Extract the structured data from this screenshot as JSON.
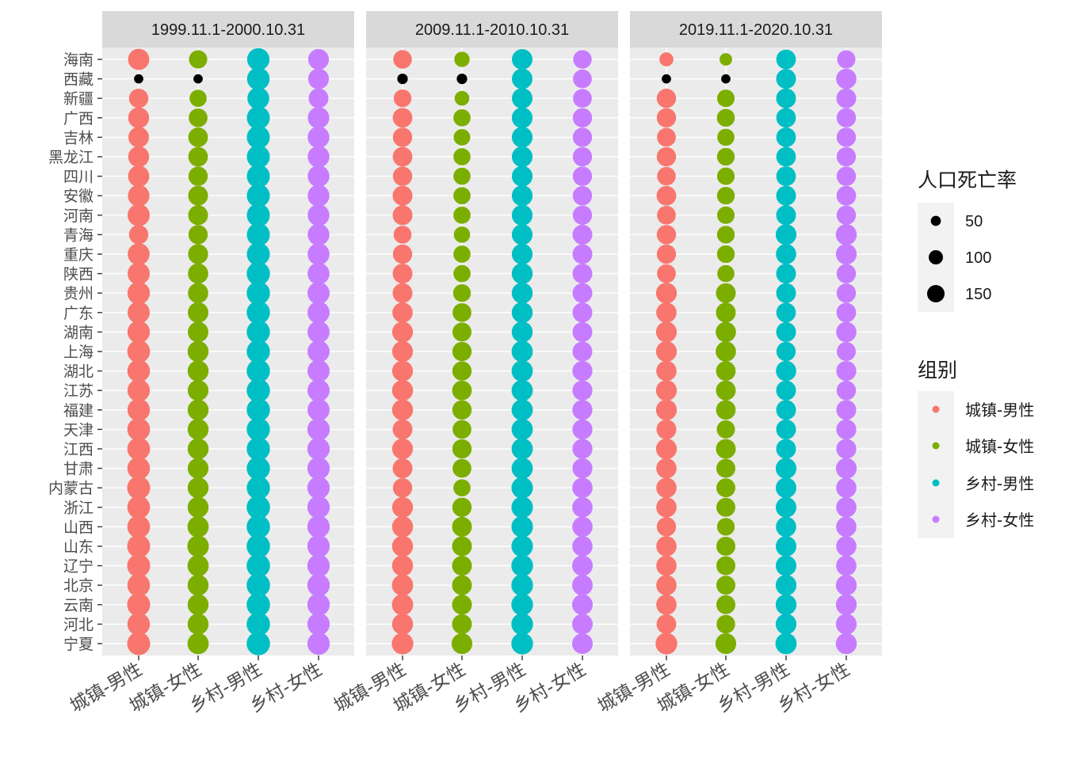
{
  "chart_data": {
    "type": "scatter",
    "subtype": "faceted-dot-matrix",
    "facets": [
      "1999.11.1-2000.10.31",
      "2009.11.1-2010.10.31",
      "2019.11.1-2020.10.31"
    ],
    "categories_x": [
      "城镇-男性",
      "城镇-女性",
      "乡村-男性",
      "乡村-女性"
    ],
    "categories_y": [
      "海南",
      "西藏",
      "新疆",
      "广西",
      "吉林",
      "黑龙江",
      "四川",
      "安徽",
      "河南",
      "青海",
      "重庆",
      "陕西",
      "贵州",
      "广东",
      "湖南",
      "上海",
      "湖北",
      "江苏",
      "福建",
      "天津",
      "江西",
      "甘肃",
      "内蒙古",
      "浙江",
      "山西",
      "山东",
      "辽宁",
      "北京",
      "云南",
      "河北",
      "宁夏"
    ],
    "size_legend": {
      "title": "人口死亡率",
      "breaks": [
        50,
        100,
        150
      ]
    },
    "color_legend": {
      "title": "组别",
      "labels": [
        "城镇-男性",
        "城镇-女性",
        "乡村-男性",
        "乡村-女性"
      ],
      "colors": [
        "#F8766D",
        "#7CAE00",
        "#00BFC4",
        "#C77CFF"
      ]
    },
    "missing_color": "#000000",
    "panels": [
      {
        "facet": "1999.11.1-2000.10.31",
        "series": [
          {
            "name": "城镇-男性",
            "values": [
              115,
              22,
              95,
              112,
              108,
              112,
              115,
              118,
              125,
              95,
              122,
              125,
              128,
              125,
              128,
              132,
              130,
              128,
              128,
              132,
              132,
              130,
              135,
              132,
              132,
              135,
              135,
              130,
              135,
              130,
              135
            ]
          },
          {
            "name": "城镇-女性",
            "values": [
              85,
              22,
              75,
              90,
              98,
              98,
              95,
              100,
              100,
              95,
              102,
              105,
              105,
              108,
              108,
              112,
              112,
              110,
              112,
              112,
              112,
              110,
              112,
              112,
              115,
              118,
              115,
              112,
              112,
              112,
              115
            ]
          },
          {
            "name": "乡村-男性",
            "values": [
              128,
              130,
              122,
              135,
              135,
              135,
              135,
              135,
              135,
              135,
              135,
              138,
              138,
              138,
              138,
              138,
              138,
              138,
              138,
              138,
              138,
              138,
              138,
              140,
              140,
              140,
              140,
              140,
              140,
              140,
              140
            ]
          },
          {
            "name": "乡村-女性",
            "values": [
              110,
              110,
              100,
              118,
              120,
              120,
              120,
              120,
              120,
              120,
              122,
              122,
              125,
              125,
              125,
              125,
              125,
              125,
              125,
              128,
              128,
              128,
              128,
              128,
              128,
              128,
              128,
              128,
              128,
              128,
              128
            ]
          }
        ]
      },
      {
        "facet": "2009.11.1-2010.10.31",
        "series": [
          {
            "name": "城镇-男性",
            "values": [
              88,
              28,
              80,
              98,
              95,
              98,
              95,
              100,
              100,
              82,
              95,
              100,
              100,
              105,
              110,
              110,
              110,
              112,
              112,
              100,
              110,
              100,
              95,
              110,
              112,
              112,
              112,
              115,
              115,
              112,
              118
            ]
          },
          {
            "name": "城镇-女性",
            "values": [
              60,
              28,
              55,
              75,
              70,
              75,
              75,
              75,
              75,
              68,
              75,
              75,
              80,
              90,
              92,
              95,
              95,
              98,
              95,
              90,
              95,
              90,
              75,
              95,
              100,
              100,
              100,
              100,
              100,
              100,
              110
            ]
          },
          {
            "name": "乡村-男性",
            "values": [
              108,
              108,
              108,
              110,
              110,
              110,
              110,
              110,
              110,
              110,
              110,
              112,
              112,
              112,
              112,
              115,
              115,
              115,
              115,
              115,
              115,
              115,
              118,
              118,
              118,
              118,
              120,
              120,
              120,
              120,
              120
            ]
          },
          {
            "name": "乡村-女性",
            "values": [
              88,
              90,
              90,
              95,
              95,
              95,
              95,
              95,
              95,
              100,
              100,
              100,
              100,
              100,
              100,
              100,
              102,
              102,
              102,
              102,
              102,
              102,
              105,
              105,
              105,
              105,
              108,
              108,
              108,
              108,
              108
            ]
          }
        ]
      },
      {
        "facet": "2019.11.1-2020.10.31",
        "series": [
          {
            "name": "城镇-男性",
            "values": [
              50,
              22,
              95,
              95,
              90,
              95,
              88,
              98,
              90,
              95,
              95,
              90,
              110,
              105,
              110,
              110,
              105,
              110,
              110,
              100,
              110,
              105,
              105,
              105,
              95,
              105,
              105,
              105,
              105,
              98,
              120
            ]
          },
          {
            "name": "城镇-女性",
            "values": [
              40,
              22,
              78,
              82,
              75,
              80,
              78,
              80,
              78,
              80,
              80,
              75,
              100,
              100,
              105,
              105,
              98,
              100,
              98,
              85,
              100,
              92,
              92,
              92,
              80,
              92,
              92,
              92,
              92,
              88,
              110
            ]
          },
          {
            "name": "乡村-男性",
            "values": [
              98,
              100,
              100,
              98,
              98,
              98,
              98,
              100,
              100,
              110,
              105,
              100,
              100,
              98,
              100,
              95,
              105,
              100,
              100,
              100,
              100,
              110,
              108,
              108,
              105,
              108,
              108,
              110,
              110,
              110,
              115
            ]
          },
          {
            "name": "乡村-女性",
            "values": [
              85,
              105,
              100,
              95,
              95,
              95,
              95,
              98,
              95,
              112,
              110,
              95,
              95,
              98,
              105,
              92,
              102,
              95,
              100,
              102,
              102,
              110,
              105,
              105,
              105,
              105,
              105,
              110,
              110,
              110,
              112
            ]
          }
        ]
      }
    ],
    "missing": [
      {
        "facet": "1999.11.1-2000.10.31",
        "province": "西藏",
        "group": "城镇-男性"
      },
      {
        "facet": "1999.11.1-2000.10.31",
        "province": "西藏",
        "group": "城镇-女性"
      },
      {
        "facet": "2009.11.1-2010.10.31",
        "province": "西藏",
        "group": "城镇-男性"
      },
      {
        "facet": "2009.11.1-2010.10.31",
        "province": "西藏",
        "group": "城镇-女性"
      },
      {
        "facet": "2019.11.1-2020.10.31",
        "province": "西藏",
        "group": "城镇-男性"
      },
      {
        "facet": "2019.11.1-2020.10.31",
        "province": "西藏",
        "group": "城镇-女性"
      }
    ],
    "xlabel": "",
    "ylabel": "",
    "grid": true,
    "legend_position": "right"
  }
}
